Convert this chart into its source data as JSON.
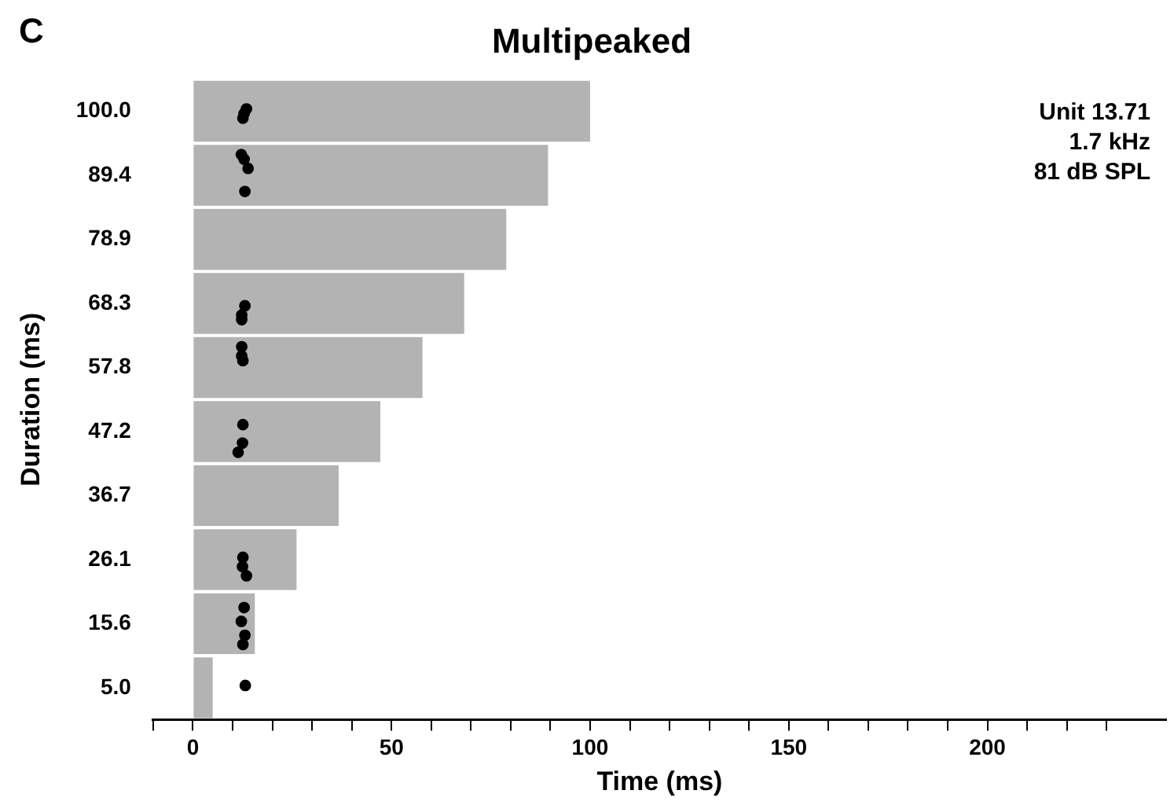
{
  "chart_data": {
    "type": "bar",
    "orientation": "horizontal",
    "title": "Multipeaked",
    "xlabel": "Time (ms)",
    "ylabel": "Duration (ms)",
    "annotations": [
      "C",
      "Unit 13.71",
      "1.7 kHz",
      "81 dB SPL"
    ],
    "categories": [
      "100.0",
      "89.4",
      "78.9",
      "68.3",
      "57.8",
      "47.2",
      "36.7",
      "26.1",
      "15.6",
      "5.0"
    ],
    "xlim": [
      -10,
      245
    ],
    "xticks": [
      {
        "value": -10,
        "label": null
      },
      0,
      {
        "value": 10,
        "label": null
      },
      {
        "value": 20,
        "label": null
      },
      {
        "value": 30,
        "label": null
      },
      {
        "value": 40,
        "label": null
      },
      50,
      {
        "value": 60,
        "label": null
      },
      {
        "value": 70,
        "label": null
      },
      {
        "value": 80,
        "label": null
      },
      {
        "value": 90,
        "label": null
      },
      100,
      {
        "value": 110,
        "label": null
      },
      {
        "value": 120,
        "label": null
      },
      {
        "value": 130,
        "label": null
      },
      {
        "value": 140,
        "label": null
      },
      150,
      {
        "value": 160,
        "label": null
      },
      {
        "value": 170,
        "label": null
      },
      {
        "value": 180,
        "label": null
      },
      {
        "value": 190,
        "label": null
      },
      200,
      {
        "value": 210,
        "label": null
      },
      {
        "value": 220,
        "label": null
      },
      {
        "value": 230,
        "label": null
      }
    ],
    "grid": false,
    "legend": false,
    "marker": "circle",
    "series": [
      {
        "color": "#b3b3b3",
        "values": [
          100,
          89.4,
          78.9,
          68.3,
          57.8,
          47.2,
          36.7,
          26.1,
          15.6,
          5.0
        ]
      },
      {
        "type": "scatter",
        "color": "#000000",
        "values": [
          null,
          12.2,
          null,
          null,
          12.3,
          null,
          null,
          null,
          null,
          null
        ]
      },
      {
        "type": "scatter",
        "color": "#000000",
        "values": [
          null,
          12.9,
          null,
          null,
          null,
          null,
          null,
          null,
          12.9,
          null
        ]
      },
      {
        "type": "scatter",
        "color": "#000000",
        "values": [
          null,
          null,
          null,
          null,
          12.3,
          null,
          null,
          null,
          null,
          null
        ]
      },
      {
        "type": "scatter",
        "color": "#000000",
        "values": [
          null,
          13.9,
          null,
          null,
          12.6,
          12.6,
          null,
          null,
          null,
          null
        ]
      },
      {
        "type": "scatter",
        "color": "#000000",
        "values": [
          13.5,
          null,
          null,
          null,
          null,
          null,
          null,
          12.6,
          12.2,
          13.2
        ]
      },
      {
        "type": "scatter",
        "color": "#000000",
        "values": [
          12.9,
          null,
          null,
          13.1,
          null,
          null,
          null,
          null,
          null,
          null
        ]
      },
      {
        "type": "scatter",
        "color": "#000000",
        "values": [
          12.6,
          null,
          null,
          null,
          null,
          null,
          null,
          12.5,
          null,
          null
        ]
      },
      {
        "type": "scatter",
        "color": "#000000",
        "values": [
          null,
          null,
          null,
          12.3,
          null,
          12.5,
          null,
          null,
          13.1,
          null
        ]
      },
      {
        "type": "scatter",
        "color": "#000000",
        "values": [
          null,
          13.1,
          null,
          12.3,
          null,
          null,
          null,
          13.5,
          null,
          null
        ]
      },
      {
        "type": "scatter",
        "color": "#000000",
        "values": [
          null,
          null,
          null,
          null,
          null,
          11.4,
          null,
          null,
          12.6,
          null
        ]
      }
    ]
  }
}
